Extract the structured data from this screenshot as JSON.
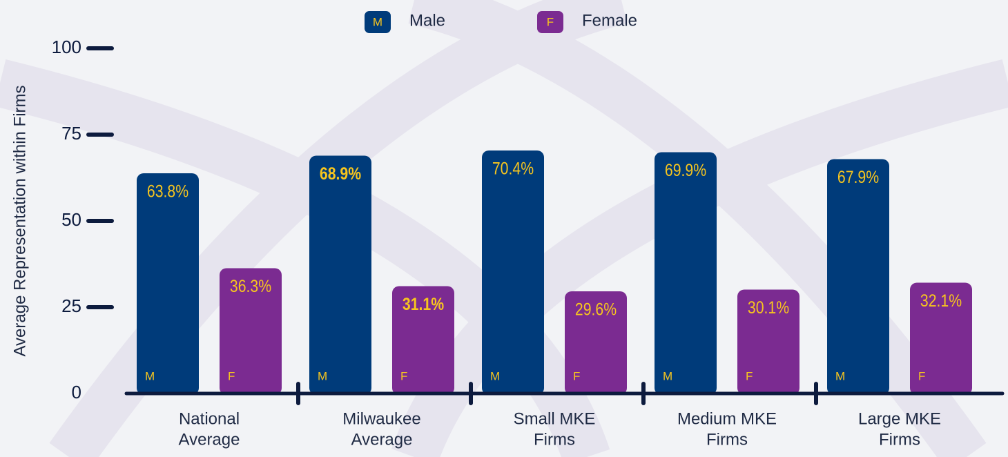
{
  "chart_data": {
    "type": "bar",
    "y_label": "Average Representation within Firms",
    "categories": [
      [
        "National",
        "Average"
      ],
      [
        "Milwaukee",
        "Average"
      ],
      [
        "Small MKE",
        "Firms"
      ],
      [
        "Medium MKE",
        "Firms"
      ],
      [
        "Large MKE",
        "Firms"
      ]
    ],
    "series": [
      {
        "name": "Male",
        "badge": "M",
        "color": "#003b7a",
        "values": [
          63.8,
          68.9,
          70.4,
          69.9,
          67.9
        ],
        "value_labels": [
          "63.8%",
          "68.9%",
          "70.4%",
          "69.9%",
          "67.9%"
        ],
        "bold": [
          false,
          true,
          false,
          false,
          false
        ]
      },
      {
        "name": "Female",
        "badge": "F",
        "color": "#7b2b91",
        "values": [
          36.3,
          31.1,
          29.6,
          30.1,
          32.1
        ],
        "value_labels": [
          "36.3%",
          "31.1%",
          "29.6%",
          "30.1%",
          "32.1%"
        ],
        "bold": [
          false,
          true,
          false,
          false,
          false
        ]
      }
    ],
    "label_color": "#f7c51e",
    "ylim": [
      0,
      100
    ],
    "yticks": [
      0,
      25,
      50,
      75,
      100
    ]
  }
}
